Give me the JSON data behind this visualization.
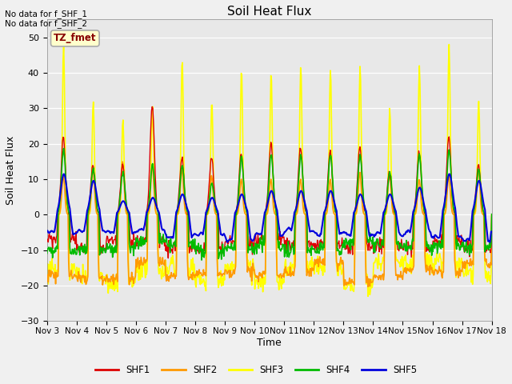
{
  "title": "Soil Heat Flux",
  "ylabel": "Soil Heat Flux",
  "xlabel": "Time",
  "ylim": [
    -30,
    55
  ],
  "bg_color": "#e8e8e8",
  "fig_color": "#f0f0f0",
  "annotation_text": "No data for f_SHF_1\nNo data for f_SHF_2",
  "legend_box_text": "TZ_fmet",
  "legend_box_color": "#ffffcc",
  "legend_box_border": "#aaaaaa",
  "series_colors": {
    "SHF1": "#dd0000",
    "SHF2": "#ff9900",
    "SHF3": "#ffff00",
    "SHF4": "#00bb00",
    "SHF5": "#0000dd"
  },
  "tick_labels": [
    "Nov 3",
    "Nov 4",
    "Nov 5",
    "Nov 6",
    "Nov 7",
    "Nov 8",
    "Nov 9",
    "Nov 10",
    "Nov 11",
    "Nov 12",
    "Nov 13",
    "Nov 14",
    "Nov 15",
    "Nov 16",
    "Nov 17",
    "Nov 18"
  ],
  "yticks": [
    -30,
    -20,
    -10,
    0,
    10,
    20,
    30,
    40,
    50
  ],
  "shf3_peaks": [
    48,
    32,
    27,
    31,
    44,
    32,
    41,
    40,
    42,
    41,
    42,
    30,
    42
  ],
  "shf2_peaks": [
    11,
    13,
    15,
    14,
    13,
    11,
    10,
    10,
    10,
    10,
    12,
    12,
    10
  ],
  "shf1_peaks": [
    22,
    14,
    14,
    31,
    16,
    16,
    17,
    20,
    19,
    18,
    19,
    12,
    18
  ],
  "shf4_peaks": [
    18,
    13,
    12,
    14,
    14,
    9,
    16,
    17,
    17,
    17,
    17,
    12,
    17
  ],
  "shf5_peaks": [
    12,
    10,
    4,
    5,
    6,
    5,
    6,
    7,
    7,
    7,
    6,
    6,
    8
  ]
}
